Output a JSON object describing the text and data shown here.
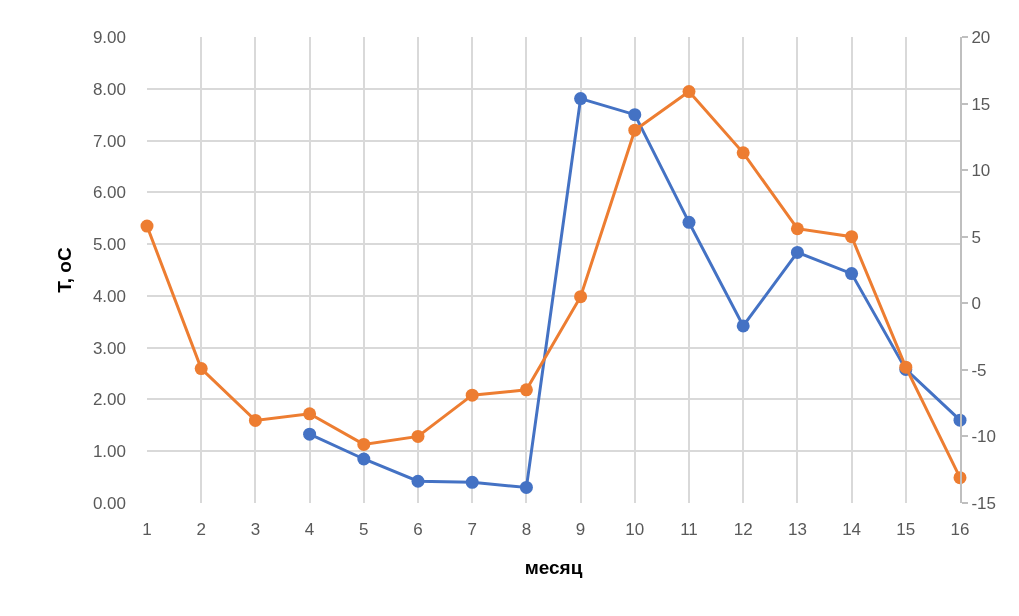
{
  "chart_data": {
    "type": "line",
    "xlabel": "месяц",
    "ylabel": "T, oC",
    "x": [
      1,
      2,
      3,
      4,
      5,
      6,
      7,
      8,
      9,
      10,
      11,
      12,
      13,
      14,
      15,
      16
    ],
    "series": [
      {
        "color": "#4472c4",
        "values": [
          null,
          null,
          null,
          1.33,
          0.85,
          0.42,
          0.4,
          0.3,
          7.81,
          7.5,
          5.42,
          3.42,
          4.84,
          4.43,
          2.58,
          1.6
        ]
      },
      {
        "color": "#ed7d31",
        "axis": "y2",
        "values": [
          5.8,
          -4.9,
          -8.8,
          -8.3,
          -10.6,
          -10.0,
          -6.9,
          -6.5,
          0.5,
          13.0,
          15.9,
          11.3,
          5.6,
          5.0,
          -4.8,
          -13.1
        ]
      }
    ],
    "xlim": [
      1,
      16
    ],
    "xticks": [
      1,
      2,
      3,
      4,
      5,
      6,
      7,
      8,
      9,
      10,
      11,
      12,
      13,
      14,
      15,
      16
    ],
    "ylim": [
      0,
      9
    ],
    "yticks": [
      {
        "value": 0,
        "label": "0.00"
      },
      {
        "value": 1,
        "label": "1.00"
      },
      {
        "value": 2,
        "label": "2.00"
      },
      {
        "value": 3,
        "label": "3.00"
      },
      {
        "value": 4,
        "label": "4.00"
      },
      {
        "value": 5,
        "label": "5.00"
      },
      {
        "value": 6,
        "label": "6.00"
      },
      {
        "value": 7,
        "label": "7.00"
      },
      {
        "value": 8,
        "label": "8.00"
      },
      {
        "value": 9,
        "label": "9.00"
      }
    ],
    "y2lim": [
      -15,
      20
    ],
    "y2ticks": [
      -15,
      -10,
      -5,
      0,
      5,
      10,
      15,
      20
    ],
    "grid": true,
    "marker": "circle",
    "line_style": "solid"
  }
}
